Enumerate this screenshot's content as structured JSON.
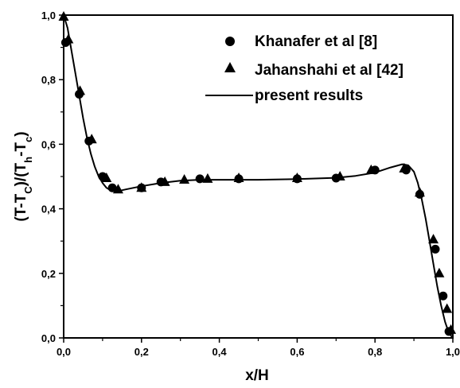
{
  "chart_data": {
    "type": "line",
    "xlabel": "x/H",
    "ylabel": "(T-T_C)/(T_h-T_c)",
    "xlim": [
      0.0,
      1.0
    ],
    "ylim": [
      0.0,
      1.0
    ],
    "x_ticks": [
      "0,0",
      "0,2",
      "0,4",
      "0,6",
      "0,8",
      "1,0"
    ],
    "y_ticks": [
      "0,0",
      "0,2",
      "0,4",
      "0,6",
      "0,8",
      "1,0"
    ],
    "legend_position": "top-right",
    "grid": false,
    "series": [
      {
        "name": "Khanafer et al [8]",
        "marker": "circle",
        "points": [
          [
            0.005,
            0.915
          ],
          [
            0.04,
            0.755
          ],
          [
            0.065,
            0.61
          ],
          [
            0.1,
            0.5
          ],
          [
            0.125,
            0.465
          ],
          [
            0.2,
            0.465
          ],
          [
            0.25,
            0.483
          ],
          [
            0.35,
            0.493
          ],
          [
            0.45,
            0.493
          ],
          [
            0.6,
            0.493
          ],
          [
            0.7,
            0.495
          ],
          [
            0.8,
            0.52
          ],
          [
            0.88,
            0.52
          ],
          [
            0.915,
            0.445
          ],
          [
            0.955,
            0.275
          ],
          [
            0.975,
            0.13
          ],
          [
            0.99,
            0.02
          ]
        ]
      },
      {
        "name": "Jahanshahi et al [42]",
        "marker": "triangle",
        "points": [
          [
            0.0,
            0.995
          ],
          [
            0.012,
            0.925
          ],
          [
            0.042,
            0.765
          ],
          [
            0.072,
            0.615
          ],
          [
            0.11,
            0.495
          ],
          [
            0.14,
            0.46
          ],
          [
            0.2,
            0.465
          ],
          [
            0.26,
            0.483
          ],
          [
            0.31,
            0.49
          ],
          [
            0.37,
            0.493
          ],
          [
            0.45,
            0.495
          ],
          [
            0.6,
            0.495
          ],
          [
            0.71,
            0.5
          ],
          [
            0.79,
            0.52
          ],
          [
            0.875,
            0.525
          ],
          [
            0.915,
            0.45
          ],
          [
            0.95,
            0.305
          ],
          [
            0.965,
            0.2
          ],
          [
            0.985,
            0.09
          ],
          [
            0.995,
            0.025
          ]
        ]
      },
      {
        "name": "present results",
        "marker": "line",
        "points": [
          [
            0.0,
            1.0
          ],
          [
            0.01,
            0.96
          ],
          [
            0.02,
            0.89
          ],
          [
            0.03,
            0.82
          ],
          [
            0.04,
            0.75
          ],
          [
            0.05,
            0.68
          ],
          [
            0.06,
            0.62
          ],
          [
            0.07,
            0.57
          ],
          [
            0.08,
            0.53
          ],
          [
            0.09,
            0.5
          ],
          [
            0.1,
            0.48
          ],
          [
            0.11,
            0.465
          ],
          [
            0.12,
            0.458
          ],
          [
            0.13,
            0.455
          ],
          [
            0.14,
            0.455
          ],
          [
            0.16,
            0.46
          ],
          [
            0.18,
            0.465
          ],
          [
            0.2,
            0.47
          ],
          [
            0.25,
            0.48
          ],
          [
            0.3,
            0.487
          ],
          [
            0.35,
            0.49
          ],
          [
            0.4,
            0.49
          ],
          [
            0.5,
            0.49
          ],
          [
            0.6,
            0.492
          ],
          [
            0.7,
            0.496
          ],
          [
            0.75,
            0.502
          ],
          [
            0.8,
            0.512
          ],
          [
            0.84,
            0.528
          ],
          [
            0.87,
            0.538
          ],
          [
            0.885,
            0.535
          ],
          [
            0.9,
            0.515
          ],
          [
            0.91,
            0.48
          ],
          [
            0.92,
            0.43
          ],
          [
            0.93,
            0.37
          ],
          [
            0.94,
            0.3
          ],
          [
            0.95,
            0.23
          ],
          [
            0.96,
            0.16
          ],
          [
            0.97,
            0.1
          ],
          [
            0.98,
            0.05
          ],
          [
            0.99,
            0.015
          ],
          [
            1.0,
            0.0
          ]
        ]
      }
    ]
  }
}
